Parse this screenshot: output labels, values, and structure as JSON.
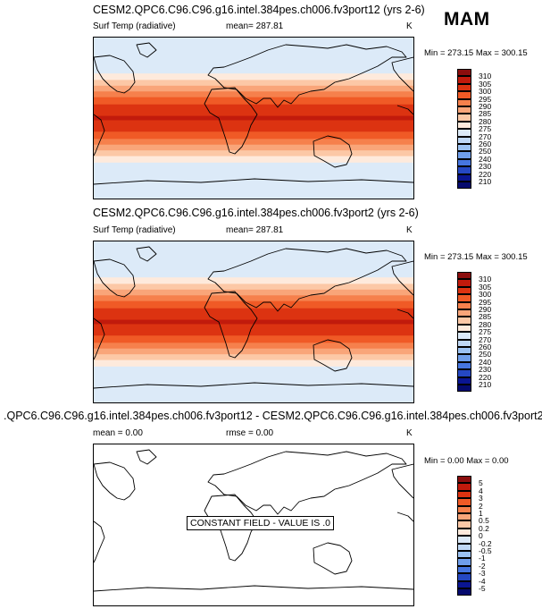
{
  "season": "MAM",
  "panels": [
    {
      "title": "CESM2.QPC6.C96.C96.g16.intel.384pes.ch006.fv3port12 (yrs 2-6)",
      "left_label": "Surf Temp (radiative)",
      "mean_text": "mean= 287.81",
      "units": "K",
      "minmax": "Min = 273.15 Max = 300.15"
    },
    {
      "title": "CESM2.QPC6.C96.C96.g16.intel.384pes.ch006.fv3port2 (yrs 2-6)",
      "left_label": "Surf Temp (radiative)",
      "mean_text": "mean= 287.81",
      "units": "K",
      "minmax": "Min = 273.15 Max = 300.15"
    },
    {
      "title": ".QPC6.C96.C96.g16.intel.384pes.ch006.fv3port12 - CESM2.QPC6.C96.C96.g16.intel.384pes.ch006.fv3port2",
      "mean_text": "mean =   0.00",
      "rmse_text": "rmse =   0.00",
      "units": "K",
      "minmax": "Min =   0.00 Max =   0.00",
      "annotation": "CONSTANT FIELD - VALUE IS .0"
    }
  ],
  "chart_data": {
    "type": "heatmap",
    "projection": "global cylindrical equidistant, dateline-centered",
    "abs_colorbar": {
      "levels": [
        "310",
        "305",
        "300",
        "295",
        "290",
        "285",
        "280",
        "275",
        "270",
        "260",
        "250",
        "240",
        "230",
        "220",
        "210"
      ],
      "colors": [
        "#8b0d0d",
        "#c11a0c",
        "#dc3311",
        "#f05a26",
        "#f6804c",
        "#f9a579",
        "#fcc8a6",
        "#feeadc",
        "#dceaf8",
        "#bfd8f6",
        "#9cc2f2",
        "#6f9eea",
        "#4676e0",
        "#2548c3",
        "#0a1592",
        "#050a6e"
      ]
    },
    "diff_colorbar": {
      "levels": [
        "5",
        "4",
        "3",
        "2",
        "1",
        "0.5",
        "0.2",
        "0",
        "-0.2",
        "-0.5",
        "-1",
        "-2",
        "-3",
        "-4",
        "-5"
      ],
      "colors": [
        "#8b0d0d",
        "#c11a0c",
        "#dc3311",
        "#f05a26",
        "#f6804c",
        "#f9a579",
        "#fcc8a6",
        "#feeadc",
        "#dceaf8",
        "#bfd8f6",
        "#9cc2f2",
        "#6f9eea",
        "#4676e0",
        "#2548c3",
        "#0a1592",
        "#050a6e"
      ]
    },
    "zonal_band_colors": [
      "#dceaf8",
      "#feeadc",
      "#fcc8a6",
      "#f9a579",
      "#f6804c",
      "#f05a26",
      "#dc3311",
      "#c11a0c",
      "#dc3311",
      "#f05a26",
      "#f6804c",
      "#f9a579",
      "#fcc8a6",
      "#feeadc",
      "#dceaf8"
    ],
    "zonal_band_weights": [
      5.0,
      0.9,
      0.8,
      0.8,
      0.8,
      1.0,
      1.6,
      0.6,
      1.6,
      1.0,
      0.8,
      0.8,
      0.8,
      0.9,
      5.0
    ]
  }
}
